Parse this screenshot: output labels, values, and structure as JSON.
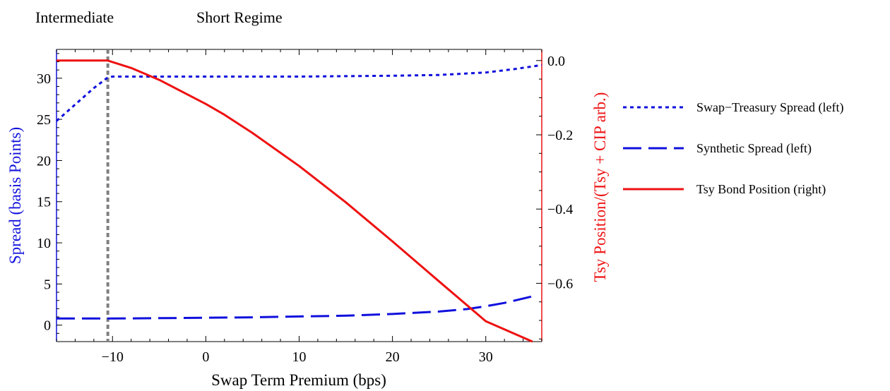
{
  "chart_data": {
    "type": "line",
    "regime_labels": [
      "Intermediate",
      "Short Regime"
    ],
    "xlabel": "Swap Term Premium (bps)",
    "ylabel_left": "Spread (basis Points)",
    "ylabel_right": "Tsy Position/(Tsy + CIP arb.)",
    "xlim": [
      -16,
      36
    ],
    "ylim_left": [
      -2,
      33.5
    ],
    "ylim_right": [
      -0.757,
      0.03
    ],
    "x_ticks": [
      -10,
      0,
      10,
      20,
      30
    ],
    "x_tick_labels": [
      "−10",
      "0",
      "10",
      "20",
      "30"
    ],
    "y_left_ticks": [
      0,
      5,
      10,
      15,
      20,
      25,
      30
    ],
    "y_left_tick_labels": [
      "0",
      "5",
      "10",
      "15",
      "20",
      "25",
      "30"
    ],
    "y_right_ticks": [
      0.0,
      -0.2,
      -0.4,
      -0.6
    ],
    "y_right_tick_labels": [
      "0.0",
      "−0.2",
      "−0.4",
      "−0.6"
    ],
    "regime_boundary_x": -10.5,
    "grid": false,
    "legend_position": "right",
    "colors": {
      "swap_treasury": "#1010dd",
      "synthetic": "#1010dd",
      "tsy_position": "#ee1111",
      "boundary": "#808080",
      "left_axis": "#1010dd",
      "right_axis": "#ee1111"
    },
    "series": [
      {
        "name": "Swap−Treasury Spread (left)",
        "axis": "left",
        "style": "dotted",
        "x": [
          -16,
          -14,
          -12,
          -10.5,
          -10,
          -5,
          0,
          5,
          10,
          15,
          20,
          25,
          30,
          33,
          36
        ],
        "y": [
          24.8,
          26.8,
          28.8,
          30.1,
          30.2,
          30.2,
          30.2,
          30.2,
          30.2,
          30.25,
          30.3,
          30.4,
          30.7,
          31.1,
          31.6
        ]
      },
      {
        "name": "Synthetic Spread (left)",
        "axis": "left",
        "style": "dashed",
        "x": [
          -16,
          -10,
          -5,
          0,
          5,
          10,
          15,
          20,
          25,
          28,
          30,
          32,
          35
        ],
        "y": [
          0.8,
          0.8,
          0.85,
          0.9,
          0.95,
          1.05,
          1.15,
          1.35,
          1.65,
          1.95,
          2.3,
          2.7,
          3.5
        ]
      },
      {
        "name": "Tsy Bond Position (right)",
        "axis": "right",
        "style": "solid",
        "x": [
          -16,
          -11.5,
          -10.5,
          -10,
          -8,
          -5,
          0,
          2,
          5,
          10,
          15,
          20,
          25,
          30,
          35
        ],
        "y": [
          0.0,
          0.0,
          0.0,
          -0.004,
          -0.02,
          -0.052,
          -0.117,
          -0.146,
          -0.195,
          -0.284,
          -0.382,
          -0.487,
          -0.595,
          -0.702,
          -0.757
        ]
      }
    ]
  }
}
